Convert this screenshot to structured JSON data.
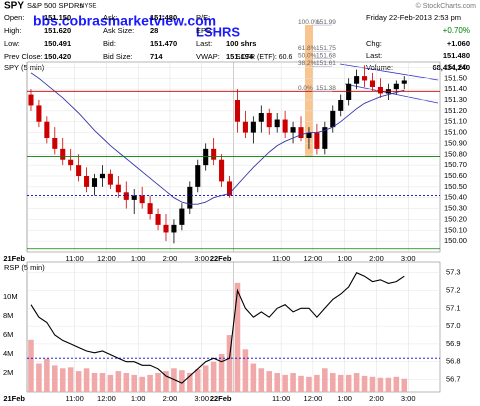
{
  "header": {
    "symbol": "SPY",
    "name": "S&P 500 SPDRs",
    "exchange": "NYSE",
    "credit": "© StockCharts.com",
    "date": "Friday 22-Feb-2013 2:53 pm",
    "change_pct": "+0.70%",
    "col1": [
      {
        "label": "Open:",
        "value": "151.150"
      },
      {
        "label": "High:",
        "value": "151.620"
      },
      {
        "label": "Low:",
        "value": "150.491"
      },
      {
        "label": "Prev Close:",
        "value": "150.420"
      }
    ],
    "col2": [
      {
        "label": "Ask:",
        "value": "151.480"
      },
      {
        "label": "Ask Size:",
        "value": "28"
      },
      {
        "label": "Bid:",
        "value": "151.470"
      },
      {
        "label": "Bid Size:",
        "value": "714"
      }
    ],
    "col3": [
      {
        "label": "P/E:"
      },
      {
        "label": "EPS:"
      },
      {
        "label": "Last:",
        "value": "100 shrs"
      },
      {
        "label": "VWAP:",
        "value": "151.194"
      }
    ],
    "col4": [
      {
        "label": "Chg:",
        "value": "+1.060"
      },
      {
        "label": "Last:",
        "value": "151.480"
      },
      {
        "label": "Volume:",
        "value": "68,434,240"
      }
    ],
    "sctr": "SCTR (ETF): 60.6",
    "watermark": "bbs.cobrasmarketview.com",
    "tag": "LSHRS"
  },
  "chart_data": [
    {
      "type": "candlestick",
      "title": "SPY (5 min)",
      "categories": [
        "21Feb",
        null,
        null,
        null,
        null,
        null,
        "11:00",
        null,
        null,
        null,
        "12:00",
        null,
        null,
        null,
        "1:00",
        null,
        null,
        null,
        "2:00",
        null,
        null,
        null,
        "3:00",
        null,
        null,
        null,
        "22Feb",
        null,
        null,
        null,
        null,
        null,
        "11:00",
        null,
        null,
        null,
        "12:00",
        null,
        null,
        null,
        "1:00",
        null,
        null,
        null,
        "2:00",
        null,
        null,
        null,
        "3:00",
        null,
        null,
        null
      ],
      "open": [
        151.35,
        151.25,
        151.1,
        150.95,
        150.85,
        150.75,
        150.7,
        150.6,
        150.5,
        150.58,
        150.62,
        150.52,
        150.45,
        150.38,
        150.42,
        150.35,
        150.25,
        150.15,
        150.08,
        150.15,
        150.3,
        150.5,
        150.7,
        150.85,
        150.75,
        150.55,
        151.3,
        151.1,
        151.0,
        151.1,
        151.18,
        151.05,
        151.12,
        151.0,
        151.05,
        150.95,
        151.0,
        150.85,
        151.05,
        151.2,
        151.3,
        151.45,
        151.52,
        151.48,
        151.42,
        151.36,
        151.4,
        151.45,
        null,
        null,
        null,
        null
      ],
      "high": [
        151.4,
        151.3,
        151.15,
        151.05,
        150.95,
        150.85,
        150.8,
        150.68,
        150.62,
        150.7,
        150.66,
        150.6,
        150.55,
        150.48,
        150.5,
        150.42,
        150.3,
        150.25,
        150.2,
        150.35,
        150.55,
        150.75,
        150.9,
        150.95,
        150.8,
        150.6,
        151.4,
        151.2,
        151.15,
        151.25,
        151.22,
        151.18,
        151.2,
        151.1,
        151.15,
        151.05,
        151.08,
        151.1,
        151.25,
        151.35,
        151.5,
        151.58,
        151.62,
        151.55,
        151.5,
        151.45,
        151.48,
        151.52,
        null,
        null,
        null,
        null
      ],
      "low": [
        151.2,
        151.05,
        150.9,
        150.8,
        150.7,
        150.65,
        150.55,
        150.45,
        150.42,
        150.5,
        150.48,
        150.4,
        150.3,
        150.25,
        150.3,
        150.2,
        150.1,
        150.0,
        149.98,
        150.1,
        150.25,
        150.45,
        150.65,
        150.7,
        150.5,
        150.4,
        151.0,
        150.95,
        150.9,
        151.0,
        150.98,
        151.0,
        150.95,
        150.9,
        150.92,
        150.85,
        150.8,
        150.8,
        151.0,
        151.15,
        151.25,
        151.4,
        151.42,
        151.38,
        151.32,
        151.3,
        151.35,
        151.4,
        null,
        null,
        null,
        null
      ],
      "close": [
        151.25,
        151.1,
        150.95,
        150.85,
        150.75,
        150.7,
        150.6,
        150.5,
        150.58,
        150.62,
        150.52,
        150.45,
        150.38,
        150.42,
        150.35,
        150.25,
        150.15,
        150.08,
        150.15,
        150.3,
        150.5,
        150.7,
        150.85,
        150.75,
        150.55,
        150.42,
        151.1,
        151.0,
        151.1,
        151.18,
        151.05,
        151.12,
        151.0,
        151.05,
        150.95,
        151.0,
        150.85,
        151.05,
        151.2,
        151.3,
        151.45,
        151.52,
        151.48,
        151.42,
        151.36,
        151.4,
        151.45,
        151.48,
        null,
        null,
        null,
        null
      ],
      "up_color": "#000000",
      "down_color": "#cc0000",
      "moving_average": {
        "color": "#3333aa",
        "values": [
          151.55,
          151.5,
          151.44,
          151.38,
          151.32,
          151.25,
          151.18,
          151.1,
          151.02,
          150.95,
          150.88,
          150.82,
          150.76,
          150.7,
          150.64,
          150.58,
          150.52,
          150.46,
          150.4,
          150.36,
          150.34,
          150.34,
          150.36,
          150.4,
          150.42,
          150.44,
          150.52,
          150.6,
          150.68,
          150.75,
          150.82,
          150.88,
          150.92,
          150.95,
          150.98,
          151.0,
          151.0,
          151.02,
          151.05,
          151.1,
          151.16,
          151.22,
          151.27,
          151.3,
          151.33,
          151.35,
          151.37,
          151.39,
          null,
          null,
          null,
          null
        ]
      },
      "hlines": [
        {
          "value": 151.38,
          "color": "#c00000"
        },
        {
          "value": 150.78,
          "color": "#008000"
        },
        {
          "value": 150.42,
          "color": "#0000cc",
          "dashed": true
        },
        {
          "value": 149.93,
          "color": "#008000"
        }
      ],
      "fib_levels": [
        {
          "label": "100.0%",
          "value": 151.99
        },
        {
          "label": "61.8%",
          "value": 151.75
        },
        {
          "label": "50.0%",
          "value": 151.68
        },
        {
          "label": "38.2%",
          "value": 151.61
        },
        {
          "label": "0.0%",
          "value": 151.38
        }
      ],
      "ylim": [
        149.9,
        151.65
      ],
      "yticks": [
        {
          "value": 150.0,
          "label": "150.00"
        },
        {
          "value": 150.1,
          "label": "150.10"
        },
        {
          "value": 150.2,
          "label": "150.20"
        },
        {
          "value": 150.3,
          "label": "150.30"
        },
        {
          "value": 150.4,
          "label": "150.40"
        },
        {
          "value": 150.5,
          "label": "150.50"
        },
        {
          "value": 150.6,
          "label": "150.60"
        },
        {
          "value": 150.7,
          "label": "150.70"
        },
        {
          "value": 150.8,
          "label": "150.80"
        },
        {
          "value": 150.9,
          "label": "150.90"
        },
        {
          "value": 151.0,
          "label": "151.00"
        },
        {
          "value": 151.1,
          "label": "151.10"
        },
        {
          "value": 151.2,
          "label": "151.20"
        },
        {
          "value": 151.3,
          "label": "151.30"
        },
        {
          "value": 151.4,
          "label": "151.40"
        },
        {
          "value": 151.5,
          "label": "151.50"
        },
        {
          "value": 151.6,
          "label": "151.60"
        }
      ],
      "grid": true
    },
    {
      "type": "bar",
      "title": "RSP (5 min)",
      "categories": [
        "21Feb",
        null,
        null,
        null,
        null,
        null,
        "11:00",
        null,
        null,
        null,
        "12:00",
        null,
        null,
        null,
        "1:00",
        null,
        null,
        null,
        "2:00",
        null,
        null,
        null,
        "3:00",
        null,
        null,
        null,
        "22Feb",
        null,
        null,
        null,
        null,
        null,
        "11:00",
        null,
        null,
        null,
        "12:00",
        null,
        null,
        null,
        "1:00",
        null,
        null,
        null,
        "2:00",
        null,
        null,
        null,
        "3:00",
        null,
        null,
        null
      ],
      "values": [
        5.5,
        3.0,
        3.5,
        2.8,
        2.5,
        2.6,
        2.2,
        2.5,
        2.0,
        2.0,
        1.8,
        2.2,
        2.0,
        1.8,
        1.6,
        1.8,
        2.0,
        2.2,
        2.5,
        2.3,
        2.0,
        2.4,
        2.8,
        3.2,
        4.0,
        6.0,
        11.5,
        4.5,
        3.0,
        2.5,
        2.2,
        2.0,
        1.8,
        2.0,
        1.7,
        1.6,
        1.8,
        2.5,
        2.0,
        1.8,
        1.8,
        2.0,
        1.7,
        1.6,
        1.5,
        1.5,
        1.6,
        1.4,
        null,
        null,
        null,
        null
      ],
      "color": "#f0a8a8",
      "line": {
        "color": "#000000",
        "axis": "y2",
        "values": [
          57.12,
          57.05,
          57.02,
          56.95,
          56.92,
          56.9,
          56.88,
          56.86,
          56.85,
          56.86,
          56.84,
          56.82,
          56.8,
          56.8,
          56.78,
          56.78,
          56.76,
          56.72,
          56.7,
          56.68,
          56.72,
          56.76,
          56.8,
          56.82,
          56.8,
          56.82,
          57.2,
          57.1,
          57.05,
          57.08,
          57.05,
          57.1,
          57.12,
          57.08,
          57.1,
          57.1,
          57.05,
          57.1,
          57.15,
          57.18,
          57.22,
          57.3,
          57.28,
          57.25,
          57.26,
          57.24,
          57.25,
          57.28,
          null,
          null,
          null,
          null
        ]
      },
      "hlines": [
        {
          "value": 56.82,
          "color": "#0000cc",
          "dashed": true,
          "axis": "y2"
        }
      ],
      "ylim": [
        0,
        13.7
      ],
      "yticks": [
        {
          "value": 2,
          "label": "2M"
        },
        {
          "value": 4,
          "label": "4M"
        },
        {
          "value": 6,
          "label": "6M"
        },
        {
          "value": 8,
          "label": "8M"
        },
        {
          "value": 10,
          "label": "10M"
        }
      ],
      "y2lim": [
        56.63,
        57.36
      ],
      "y2ticks": [
        56.7,
        56.8,
        56.9,
        {
          "value": 57.0,
          "label": "57.0"
        },
        57.1,
        57.2,
        57.3
      ],
      "grid": true
    }
  ]
}
